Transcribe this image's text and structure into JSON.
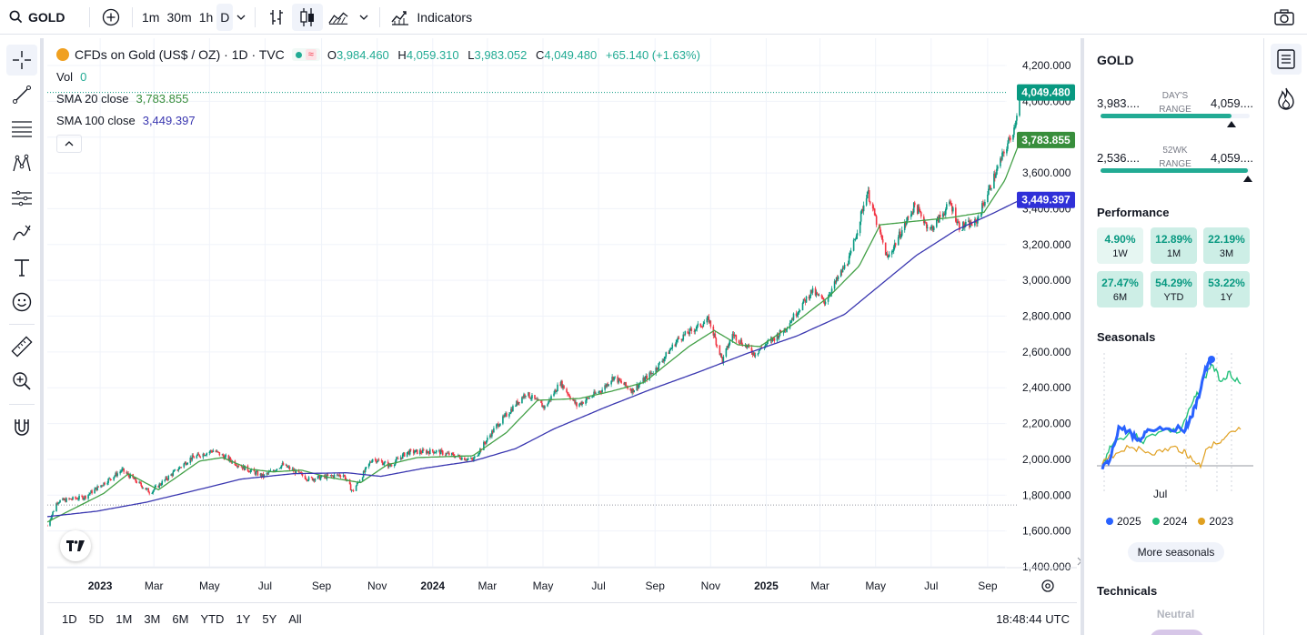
{
  "toolbar": {
    "symbol": "GOLD",
    "intervals": [
      "1m",
      "30m",
      "1h",
      "D"
    ],
    "active_interval": "D",
    "indicators_label": "Indicators"
  },
  "legend": {
    "title": "CFDs on Gold (US$ / OZ) · 1D · TVC",
    "open_label": "O",
    "open": "3,984.460",
    "high_label": "H",
    "high": "4,059.310",
    "low_label": "L",
    "low": "3,983.052",
    "close_label": "C",
    "close": "4,049.480",
    "change": "+65.140 (+1.63%)",
    "wave_icon": "≈",
    "vol_label": "Vol",
    "vol_value": "0",
    "sma20_label": "SMA 20 close",
    "sma20_value": "3,783.855",
    "sma100_label": "SMA 100 close",
    "sma100_value": "3,449.397"
  },
  "chart_data": {
    "type": "candlestick",
    "symbol": "GOLD",
    "interval": "1D",
    "y_ticks": [
      "4,200.000",
      "4,000.000",
      "3,800.000",
      "3,600.000",
      "3,400.000",
      "3,200.000",
      "3,000.000",
      "2,800.000",
      "2,600.000",
      "2,400.000",
      "2,200.000",
      "2,000.000",
      "1,800.000",
      "1,600.000",
      "1,400.000"
    ],
    "ylim": [
      1400,
      4200
    ],
    "x_ticks": [
      "2023",
      "Mar",
      "May",
      "Jul",
      "Sep",
      "Nov",
      "2024",
      "Mar",
      "May",
      "Jul",
      "Sep",
      "Nov",
      "2025",
      "Mar",
      "May",
      "Jul",
      "Sep"
    ],
    "x_tick_dates": [
      "2023-01-01",
      "2023-03-01",
      "2023-05-01",
      "2023-07-01",
      "2023-09-01",
      "2023-11-01",
      "2024-01-01",
      "2024-03-01",
      "2024-05-01",
      "2024-07-01",
      "2024-09-01",
      "2024-11-01",
      "2025-01-01",
      "2025-03-01",
      "2025-05-01",
      "2025-07-01",
      "2025-09-01"
    ],
    "x_range": [
      "2022-11-04",
      "2025-11-02"
    ],
    "price_path": [
      {
        "date": "2022-11-04",
        "price": 1630
      },
      {
        "date": "2022-11-15",
        "price": 1765
      },
      {
        "date": "2022-12-15",
        "price": 1790
      },
      {
        "date": "2023-01-25",
        "price": 1940
      },
      {
        "date": "2023-02-25",
        "price": 1815
      },
      {
        "date": "2023-04-10",
        "price": 2005
      },
      {
        "date": "2023-05-05",
        "price": 2050
      },
      {
        "date": "2023-06-05",
        "price": 1960
      },
      {
        "date": "2023-06-29",
        "price": 1905
      },
      {
        "date": "2023-07-20",
        "price": 1970
      },
      {
        "date": "2023-08-18",
        "price": 1890
      },
      {
        "date": "2023-09-25",
        "price": 1915
      },
      {
        "date": "2023-10-05",
        "price": 1820
      },
      {
        "date": "2023-10-27",
        "price": 2005
      },
      {
        "date": "2023-11-15",
        "price": 1965
      },
      {
        "date": "2023-12-04",
        "price": 2040
      },
      {
        "date": "2024-01-05",
        "price": 2045
      },
      {
        "date": "2024-02-14",
        "price": 1995
      },
      {
        "date": "2024-03-10",
        "price": 2180
      },
      {
        "date": "2024-04-12",
        "price": 2370
      },
      {
        "date": "2024-05-03",
        "price": 2290
      },
      {
        "date": "2024-05-20",
        "price": 2430
      },
      {
        "date": "2024-06-07",
        "price": 2300
      },
      {
        "date": "2024-07-05",
        "price": 2390
      },
      {
        "date": "2024-07-17",
        "price": 2460
      },
      {
        "date": "2024-08-07",
        "price": 2385
      },
      {
        "date": "2024-09-01",
        "price": 2500
      },
      {
        "date": "2024-09-26",
        "price": 2670
      },
      {
        "date": "2024-10-30",
        "price": 2780
      },
      {
        "date": "2024-11-14",
        "price": 2550
      },
      {
        "date": "2024-11-25",
        "price": 2700
      },
      {
        "date": "2024-12-19",
        "price": 2590
      },
      {
        "date": "2025-01-20",
        "price": 2720
      },
      {
        "date": "2025-02-20",
        "price": 2940
      },
      {
        "date": "2025-03-06",
        "price": 2880
      },
      {
        "date": "2025-04-03",
        "price": 3130
      },
      {
        "date": "2025-04-22",
        "price": 3500
      },
      {
        "date": "2025-05-14",
        "price": 3120
      },
      {
        "date": "2025-06-13",
        "price": 3420
      },
      {
        "date": "2025-06-30",
        "price": 3280
      },
      {
        "date": "2025-07-22",
        "price": 3430
      },
      {
        "date": "2025-08-01",
        "price": 3300
      },
      {
        "date": "2025-08-19",
        "price": 3320
      },
      {
        "date": "2025-09-02",
        "price": 3500
      },
      {
        "date": "2025-09-17",
        "price": 3690
      },
      {
        "date": "2025-09-30",
        "price": 3850
      },
      {
        "date": "2025-10-07",
        "price": 4049.48
      }
    ],
    "sma20_path": [
      {
        "date": "2022-11-04",
        "price": 1650
      },
      {
        "date": "2023-01-05",
        "price": 1810
      },
      {
        "date": "2023-02-01",
        "price": 1920
      },
      {
        "date": "2023-03-06",
        "price": 1830
      },
      {
        "date": "2023-04-20",
        "price": 1990
      },
      {
        "date": "2023-05-15",
        "price": 2010
      },
      {
        "date": "2023-06-15",
        "price": 1945
      },
      {
        "date": "2023-07-10",
        "price": 1930
      },
      {
        "date": "2023-08-10",
        "price": 1940
      },
      {
        "date": "2023-09-08",
        "price": 1900
      },
      {
        "date": "2023-10-14",
        "price": 1870
      },
      {
        "date": "2023-11-12",
        "price": 1970
      },
      {
        "date": "2023-12-15",
        "price": 2010
      },
      {
        "date": "2024-02-14",
        "price": 2020
      },
      {
        "date": "2024-03-22",
        "price": 2150
      },
      {
        "date": "2024-04-25",
        "price": 2330
      },
      {
        "date": "2024-06-10",
        "price": 2340
      },
      {
        "date": "2024-07-15",
        "price": 2380
      },
      {
        "date": "2024-08-20",
        "price": 2430
      },
      {
        "date": "2024-10-08",
        "price": 2630
      },
      {
        "date": "2024-11-05",
        "price": 2720
      },
      {
        "date": "2024-12-01",
        "price": 2640
      },
      {
        "date": "2024-12-25",
        "price": 2630
      },
      {
        "date": "2025-02-01",
        "price": 2760
      },
      {
        "date": "2025-03-11",
        "price": 2910
      },
      {
        "date": "2025-04-13",
        "price": 3080
      },
      {
        "date": "2025-05-06",
        "price": 3310
      },
      {
        "date": "2025-06-13",
        "price": 3330
      },
      {
        "date": "2025-07-22",
        "price": 3350
      },
      {
        "date": "2025-08-28",
        "price": 3380
      },
      {
        "date": "2025-09-20",
        "price": 3560
      },
      {
        "date": "2025-10-07",
        "price": 3783.855
      }
    ],
    "sma100_path": [
      {
        "date": "2022-11-04",
        "price": 1680
      },
      {
        "date": "2022-12-28",
        "price": 1710
      },
      {
        "date": "2023-02-20",
        "price": 1760
      },
      {
        "date": "2023-04-10",
        "price": 1820
      },
      {
        "date": "2023-06-05",
        "price": 1890
      },
      {
        "date": "2023-08-01",
        "price": 1920
      },
      {
        "date": "2023-09-29",
        "price": 1925
      },
      {
        "date": "2023-11-05",
        "price": 1905
      },
      {
        "date": "2023-12-22",
        "price": 1950
      },
      {
        "date": "2024-02-14",
        "price": 1990
      },
      {
        "date": "2024-04-01",
        "price": 2060
      },
      {
        "date": "2024-05-13",
        "price": 2170
      },
      {
        "date": "2024-07-08",
        "price": 2290
      },
      {
        "date": "2024-08-27",
        "price": 2390
      },
      {
        "date": "2024-10-20",
        "price": 2490
      },
      {
        "date": "2024-12-10",
        "price": 2590
      },
      {
        "date": "2025-02-04",
        "price": 2690
      },
      {
        "date": "2025-03-28",
        "price": 2810
      },
      {
        "date": "2025-05-10",
        "price": 2990
      },
      {
        "date": "2025-06-15",
        "price": 3140
      },
      {
        "date": "2025-07-28",
        "price": 3280
      },
      {
        "date": "2025-09-05",
        "price": 3370
      },
      {
        "date": "2025-10-07",
        "price": 3449.397
      }
    ],
    "price_labels": [
      {
        "value": 4049.48,
        "text": "4,049.480",
        "color": "#089981"
      },
      {
        "value": 3783.855,
        "text": "3,783.855",
        "color": "#388e3c"
      },
      {
        "value": 3449.397,
        "text": "3,449.397",
        "color": "#3030d8"
      }
    ],
    "series_colors": {
      "up": "#089981",
      "down": "#f23645",
      "sma20": "#43a047",
      "sma100": "#3a37b0"
    },
    "grid": true
  },
  "bottombar": {
    "ranges": [
      "1D",
      "5D",
      "1M",
      "3M",
      "6M",
      "YTD",
      "1Y",
      "5Y",
      "All"
    ],
    "clock": "18:48:44 UTC"
  },
  "rightpanel": {
    "title": "GOLD",
    "days_range": {
      "low": "3,983....",
      "label_line1": "DAY'S",
      "label_line2": "RANGE",
      "high": "4,059....",
      "position": 0.88
    },
    "wk52_range": {
      "low": "2,536....",
      "label_line1": "52WK",
      "label_line2": "RANGE",
      "high": "4,059....",
      "position": 0.99
    },
    "performance_title": "Performance",
    "performance": [
      {
        "value": "4.90%",
        "label": "1W"
      },
      {
        "value": "12.89%",
        "label": "1M"
      },
      {
        "value": "22.19%",
        "label": "3M"
      },
      {
        "value": "27.47%",
        "label": "6M"
      },
      {
        "value": "54.29%",
        "label": "YTD"
      },
      {
        "value": "53.22%",
        "label": "1Y"
      }
    ],
    "seasonals_title": "Seasonals",
    "seasonals_axis_label": "Jul",
    "seasonals_legend": [
      {
        "year": "2025",
        "color": "#2962ff"
      },
      {
        "year": "2024",
        "color": "#22c07a"
      },
      {
        "year": "2023",
        "color": "#e0a020"
      }
    ],
    "more_seasonals": "More seasonals",
    "technicals_title": "Technicals",
    "technicals_value": "Neutral"
  }
}
